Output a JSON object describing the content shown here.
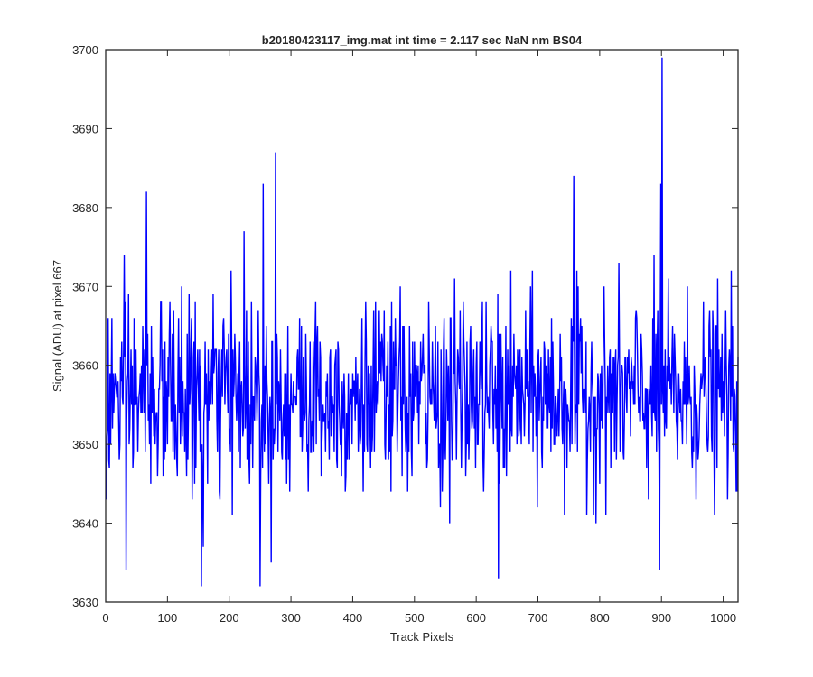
{
  "chart_data": {
    "type": "line",
    "title": "b20180423117_img.mat int time = 2.117 sec  NaN nm BS04",
    "xlabel": "Track Pixels",
    "ylabel": "Signal (ADU) at pixel 667",
    "xlim": [
      0,
      1024
    ],
    "ylim": [
      3630,
      3700
    ],
    "xticks": [
      0,
      100,
      200,
      300,
      400,
      500,
      600,
      700,
      800,
      900,
      1000
    ],
    "yticks": [
      3630,
      3640,
      3650,
      3660,
      3670,
      3680,
      3690,
      3700
    ],
    "grid": false,
    "series": [
      {
        "color": "#0000ff",
        "n_points": 1024,
        "baseline": 3656,
        "noise_sd": 6,
        "notable_points": [
          {
            "x": 1,
            "y": 3643
          },
          {
            "x": 33,
            "y": 3634
          },
          {
            "x": 66,
            "y": 3682
          },
          {
            "x": 155,
            "y": 3632
          },
          {
            "x": 158,
            "y": 3637
          },
          {
            "x": 224,
            "y": 3677
          },
          {
            "x": 250,
            "y": 3632
          },
          {
            "x": 255,
            "y": 3683
          },
          {
            "x": 268,
            "y": 3635
          },
          {
            "x": 275,
            "y": 3687
          },
          {
            "x": 636,
            "y": 3633
          },
          {
            "x": 758,
            "y": 3684
          },
          {
            "x": 897,
            "y": 3634
          },
          {
            "x": 899,
            "y": 3683
          },
          {
            "x": 901,
            "y": 3699
          }
        ]
      }
    ]
  }
}
